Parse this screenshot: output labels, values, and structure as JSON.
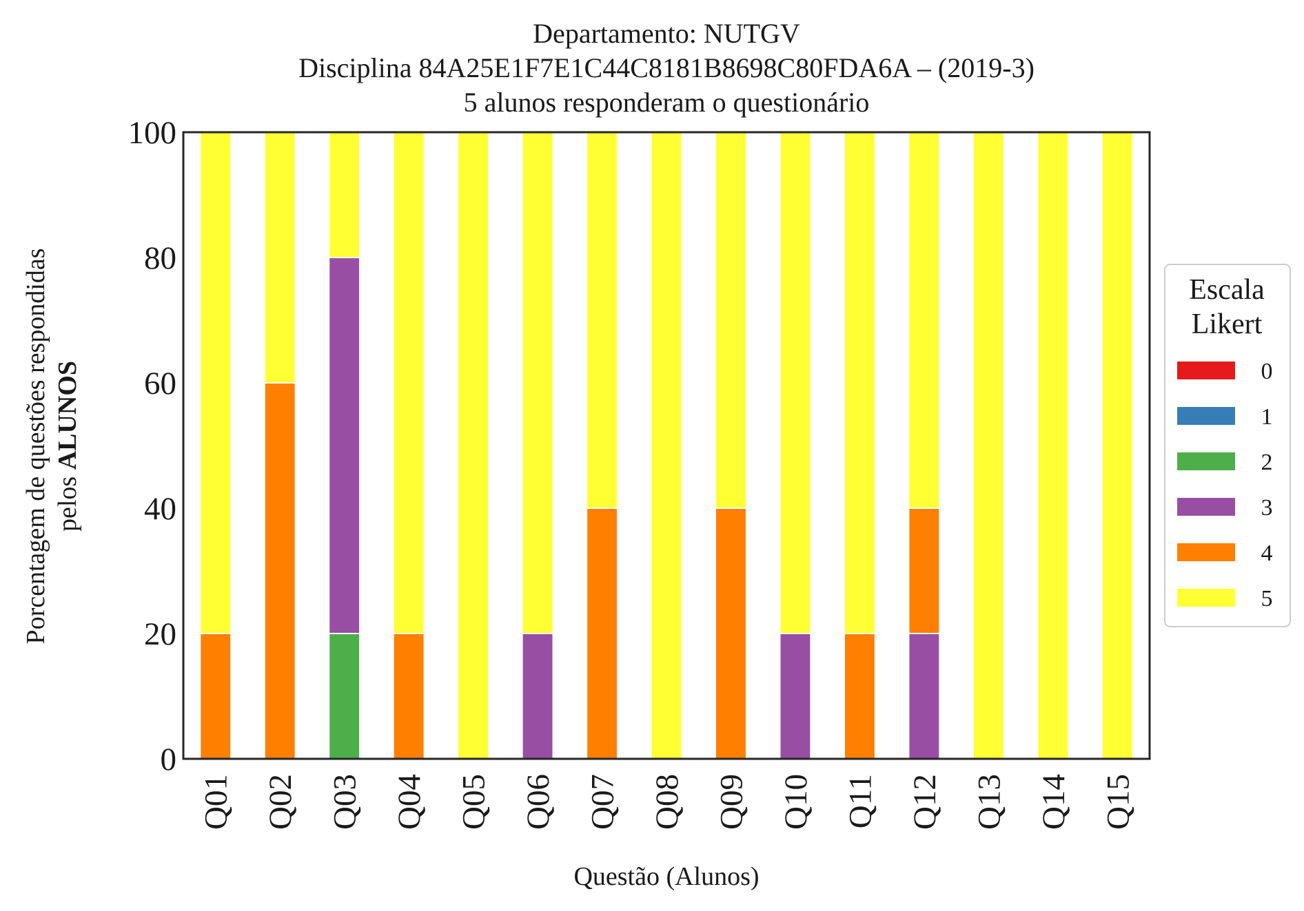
{
  "chart_data": {
    "type": "bar",
    "stacked": true,
    "title_lines": [
      "Departamento: NUTGV",
      "Disciplina 84A25E1F7E1C44C8181B8698C80FDA6A – (2019-3)",
      "5 alunos responderam o questionário"
    ],
    "xlabel": "Questão (Alunos)",
    "ylabel_line1": "Porcentagem de questões respondidas",
    "ylabel_line2_prefix": "pelos ",
    "ylabel_line2_bold": "ALUNOS",
    "ylim": [
      0,
      100
    ],
    "yticks": [
      "0",
      "20",
      "40",
      "60",
      "80",
      "100"
    ],
    "categories": [
      "Q01",
      "Q02",
      "Q03",
      "Q04",
      "Q05",
      "Q06",
      "Q07",
      "Q08",
      "Q09",
      "Q10",
      "Q11",
      "Q12",
      "Q13",
      "Q14",
      "Q15"
    ],
    "legend": {
      "title_lines": [
        "Escala",
        "Likert"
      ],
      "position": "right"
    },
    "series": [
      {
        "name": "0",
        "color": "#e41a1c",
        "values": [
          0,
          0,
          0,
          0,
          0,
          0,
          0,
          0,
          0,
          0,
          0,
          0,
          0,
          0,
          0
        ]
      },
      {
        "name": "1",
        "color": "#377eb8",
        "values": [
          0,
          0,
          0,
          0,
          0,
          0,
          0,
          0,
          0,
          0,
          0,
          0,
          0,
          0,
          0
        ]
      },
      {
        "name": "2",
        "color": "#4daf4a",
        "values": [
          0,
          0,
          20,
          0,
          0,
          0,
          0,
          0,
          0,
          0,
          0,
          0,
          0,
          0,
          0
        ]
      },
      {
        "name": "3",
        "color": "#984ea3",
        "values": [
          0,
          0,
          60,
          0,
          0,
          20,
          0,
          0,
          0,
          20,
          0,
          20,
          0,
          0,
          0
        ]
      },
      {
        "name": "4",
        "color": "#ff7f00",
        "values": [
          20,
          60,
          0,
          20,
          0,
          0,
          40,
          0,
          40,
          0,
          20,
          20,
          0,
          0,
          0
        ]
      },
      {
        "name": "5",
        "color": "#ffff33",
        "values": [
          80,
          40,
          20,
          80,
          100,
          80,
          60,
          100,
          60,
          80,
          80,
          60,
          100,
          100,
          100
        ]
      }
    ]
  }
}
